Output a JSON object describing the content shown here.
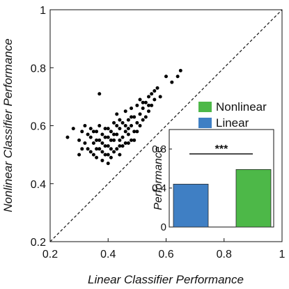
{
  "chart_data": [
    {
      "type": "scatter",
      "xlabel": "Linear Classifier Performance",
      "ylabel": "Nonlinear Classifier Performance",
      "xlim": [
        0.2,
        1.0
      ],
      "ylim": [
        0.2,
        1.0
      ],
      "x_ticks": [
        "0.2",
        "0.4",
        "0.6",
        "0.8",
        "1"
      ],
      "y_ticks": [
        "0.2",
        "0.4",
        "0.6",
        "0.8",
        "1"
      ],
      "reference_line": "identity (dashed)",
      "points_color": "#000000",
      "points": [
        [
          0.26,
          0.56
        ],
        [
          0.28,
          0.59
        ],
        [
          0.3,
          0.55
        ],
        [
          0.31,
          0.52
        ],
        [
          0.32,
          0.54
        ],
        [
          0.33,
          0.57
        ],
        [
          0.34,
          0.51
        ],
        [
          0.34,
          0.59
        ],
        [
          0.35,
          0.5
        ],
        [
          0.35,
          0.54
        ],
        [
          0.36,
          0.49
        ],
        [
          0.36,
          0.52
        ],
        [
          0.37,
          0.55
        ],
        [
          0.37,
          0.6
        ],
        [
          0.37,
          0.71
        ],
        [
          0.38,
          0.48
        ],
        [
          0.38,
          0.51
        ],
        [
          0.38,
          0.57
        ],
        [
          0.39,
          0.5
        ],
        [
          0.39,
          0.53
        ],
        [
          0.39,
          0.59
        ],
        [
          0.4,
          0.47
        ],
        [
          0.4,
          0.5
        ],
        [
          0.4,
          0.56
        ],
        [
          0.41,
          0.49
        ],
        [
          0.41,
          0.52
        ],
        [
          0.41,
          0.58
        ],
        [
          0.42,
          0.55
        ],
        [
          0.42,
          0.61
        ],
        [
          0.43,
          0.52
        ],
        [
          0.43,
          0.57
        ],
        [
          0.43,
          0.64
        ],
        [
          0.44,
          0.5
        ],
        [
          0.44,
          0.55
        ],
        [
          0.44,
          0.59
        ],
        [
          0.45,
          0.56
        ],
        [
          0.45,
          0.61
        ],
        [
          0.46,
          0.54
        ],
        [
          0.46,
          0.58
        ],
        [
          0.46,
          0.65
        ],
        [
          0.47,
          0.57
        ],
        [
          0.47,
          0.62
        ],
        [
          0.48,
          0.55
        ],
        [
          0.48,
          0.6
        ],
        [
          0.48,
          0.66
        ],
        [
          0.49,
          0.58
        ],
        [
          0.49,
          0.63
        ],
        [
          0.5,
          0.61
        ],
        [
          0.5,
          0.67
        ],
        [
          0.51,
          0.64
        ],
        [
          0.51,
          0.69
        ],
        [
          0.52,
          0.62
        ],
        [
          0.52,
          0.66
        ],
        [
          0.53,
          0.68
        ],
        [
          0.54,
          0.65
        ],
        [
          0.54,
          0.7
        ],
        [
          0.55,
          0.67
        ],
        [
          0.55,
          0.71
        ],
        [
          0.56,
          0.69
        ],
        [
          0.56,
          0.72
        ],
        [
          0.57,
          0.73
        ],
        [
          0.58,
          0.7
        ],
        [
          0.6,
          0.77
        ],
        [
          0.62,
          0.75
        ],
        [
          0.64,
          0.77
        ],
        [
          0.65,
          0.79
        ],
        [
          0.3,
          0.5
        ],
        [
          0.31,
          0.58
        ],
        [
          0.33,
          0.52
        ],
        [
          0.34,
          0.56
        ],
        [
          0.35,
          0.58
        ],
        [
          0.36,
          0.55
        ],
        [
          0.37,
          0.52
        ],
        [
          0.38,
          0.54
        ],
        [
          0.39,
          0.56
        ],
        [
          0.4,
          0.53
        ],
        [
          0.41,
          0.55
        ],
        [
          0.42,
          0.51
        ],
        [
          0.43,
          0.6
        ],
        [
          0.44,
          0.53
        ],
        [
          0.45,
          0.53
        ],
        [
          0.46,
          0.6
        ],
        [
          0.47,
          0.54
        ],
        [
          0.49,
          0.55
        ],
        [
          0.5,
          0.58
        ],
        [
          0.51,
          0.6
        ],
        [
          0.53,
          0.63
        ],
        [
          0.4,
          0.59
        ],
        [
          0.42,
          0.57
        ],
        [
          0.36,
          0.58
        ],
        [
          0.32,
          0.6
        ],
        [
          0.44,
          0.62
        ],
        [
          0.47,
          0.59
        ],
        [
          0.48,
          0.63
        ],
        [
          0.52,
          0.68
        ],
        [
          0.54,
          0.67
        ]
      ]
    },
    {
      "type": "bar",
      "ylabel": "Performance",
      "ylim": [
        0,
        1.0
      ],
      "y_ticks": [
        "0",
        "0.4",
        "0.8"
      ],
      "categories": [
        "Linear",
        "Nonlinear"
      ],
      "values": [
        0.44,
        0.59
      ],
      "colors": [
        "#3f7fc4",
        "#4db848"
      ],
      "legend": [
        {
          "label": "Nonlinear",
          "color": "#4db848"
        },
        {
          "label": "Linear",
          "color": "#3f7fc4"
        }
      ],
      "significance": "***"
    }
  ]
}
